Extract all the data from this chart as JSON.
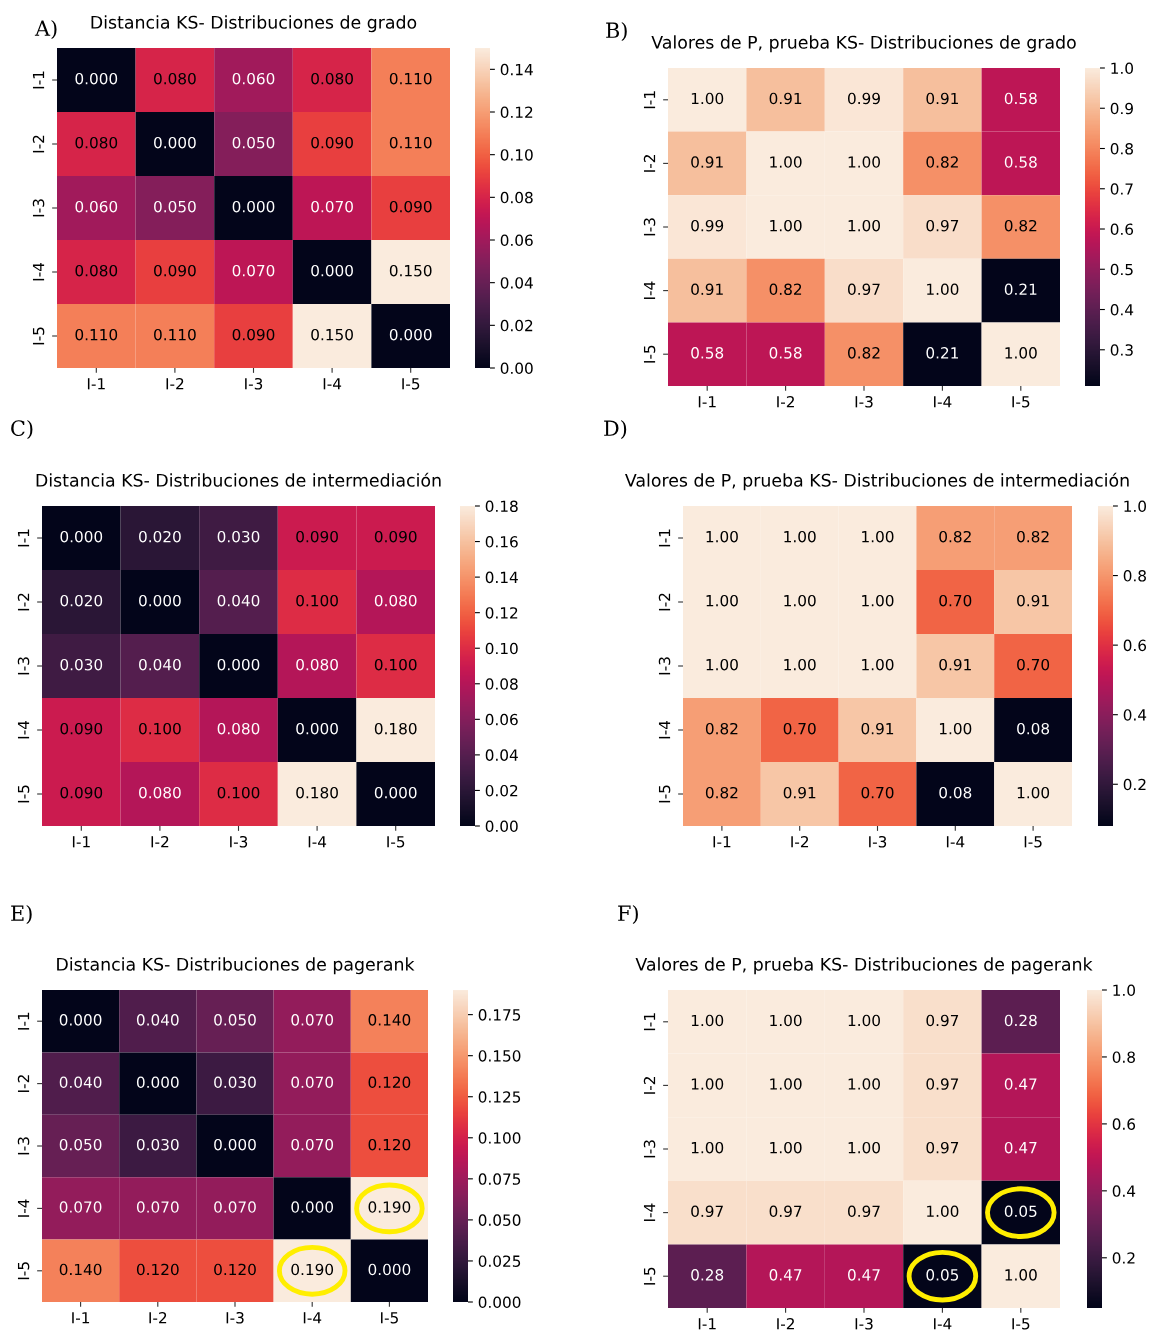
{
  "chart_data": [
    {
      "type": "heatmap",
      "title": "Distancia KS- Distribuciones de grado",
      "annotations": [
        "A)"
      ],
      "categories": [
        "I-1",
        "I-2",
        "I-3",
        "I-4",
        "I-5"
      ],
      "y_categories": [
        "I-1",
        "I-2",
        "I-3",
        "I-4",
        "I-5"
      ],
      "cells": [
        [
          0.0,
          0.08,
          0.06,
          0.08,
          0.11
        ],
        [
          0.08,
          0.0,
          0.05,
          0.09,
          0.11
        ],
        [
          0.06,
          0.05,
          0.0,
          0.07,
          0.09
        ],
        [
          0.08,
          0.09,
          0.07,
          0.0,
          0.15
        ],
        [
          0.11,
          0.11,
          0.09,
          0.15,
          0.0
        ]
      ],
      "cell_labels": [
        [
          "0.000",
          "0.080",
          "0.060",
          "0.080",
          "0.110"
        ],
        [
          "0.080",
          "0.000",
          "0.050",
          "0.090",
          "0.110"
        ],
        [
          "0.060",
          "0.050",
          "0.000",
          "0.070",
          "0.090"
        ],
        [
          "0.080",
          "0.090",
          "0.070",
          "0.000",
          "0.150"
        ],
        [
          "0.110",
          "0.110",
          "0.090",
          "0.150",
          "0.000"
        ]
      ],
      "clim": [
        0.0,
        0.15
      ],
      "cticks": [
        {
          "value": 0.0,
          "label": "0.00"
        },
        {
          "value": 0.02,
          "label": "0.02"
        },
        {
          "value": 0.04,
          "label": "0.04"
        },
        {
          "value": 0.06,
          "label": "0.06"
        },
        {
          "value": 0.08,
          "label": "0.08"
        },
        {
          "value": 0.1,
          "label": "0.10"
        },
        {
          "value": 0.12,
          "label": "0.12"
        },
        {
          "value": 0.14,
          "label": "0.14"
        }
      ]
    },
    {
      "type": "heatmap",
      "title": "Valores de P, prueba KS- Distribuciones de grado",
      "annotations": [
        "B)"
      ],
      "categories": [
        "I-1",
        "I-2",
        "I-3",
        "I-4",
        "I-5"
      ],
      "y_categories": [
        "I-1",
        "I-2",
        "I-3",
        "I-4",
        "I-5"
      ],
      "cells": [
        [
          1.0,
          0.91,
          0.99,
          0.91,
          0.58
        ],
        [
          0.91,
          1.0,
          1.0,
          0.82,
          0.58
        ],
        [
          0.99,
          1.0,
          1.0,
          0.97,
          0.82
        ],
        [
          0.91,
          0.82,
          0.97,
          1.0,
          0.21
        ],
        [
          0.58,
          0.58,
          0.82,
          0.21,
          1.0
        ]
      ],
      "cell_labels": [
        [
          "1.00",
          "0.91",
          "0.99",
          "0.91",
          "0.58"
        ],
        [
          "0.91",
          "1.00",
          "1.00",
          "0.82",
          "0.58"
        ],
        [
          "0.99",
          "1.00",
          "1.00",
          "0.97",
          "0.82"
        ],
        [
          "0.91",
          "0.82",
          "0.97",
          "1.00",
          "0.21"
        ],
        [
          "0.58",
          "0.58",
          "0.82",
          "0.21",
          "1.00"
        ]
      ],
      "clim": [
        0.21,
        1.0
      ],
      "cticks": [
        0.3,
        0.4,
        0.5,
        0.6,
        0.7,
        0.8,
        0.9,
        {
          "value": 1.0,
          "label": "1.0"
        }
      ]
    },
    {
      "type": "heatmap",
      "title": "Distancia KS- Distribuciones de intermediación",
      "annotations": [
        "C)"
      ],
      "categories": [
        "I-1",
        "I-2",
        "I-3",
        "I-4",
        "I-5"
      ],
      "y_categories": [
        "I-1",
        "I-2",
        "I-3",
        "I-4",
        "I-5"
      ],
      "cells": [
        [
          0.0,
          0.02,
          0.03,
          0.09,
          0.09
        ],
        [
          0.02,
          0.0,
          0.04,
          0.1,
          0.08
        ],
        [
          0.03,
          0.04,
          0.0,
          0.08,
          0.1
        ],
        [
          0.09,
          0.1,
          0.08,
          0.0,
          0.18
        ],
        [
          0.09,
          0.08,
          0.1,
          0.18,
          0.0
        ]
      ],
      "cell_labels": [
        [
          "0.000",
          "0.020",
          "0.030",
          "0.090",
          "0.090"
        ],
        [
          "0.020",
          "0.000",
          "0.040",
          "0.100",
          "0.080"
        ],
        [
          "0.030",
          "0.040",
          "0.000",
          "0.080",
          "0.100"
        ],
        [
          "0.090",
          "0.100",
          "0.080",
          "0.000",
          "0.180"
        ],
        [
          "0.090",
          "0.080",
          "0.100",
          "0.180",
          "0.000"
        ]
      ],
      "clim": [
        0.0,
        0.18
      ],
      "cticks": [
        {
          "value": 0.0,
          "label": "0.00"
        },
        {
          "value": 0.02,
          "label": "0.02"
        },
        {
          "value": 0.04,
          "label": "0.04"
        },
        {
          "value": 0.06,
          "label": "0.06"
        },
        {
          "value": 0.08,
          "label": "0.08"
        },
        {
          "value": 0.1,
          "label": "0.10"
        },
        {
          "value": 0.12,
          "label": "0.12"
        },
        {
          "value": 0.14,
          "label": "0.14"
        },
        {
          "value": 0.16,
          "label": "0.16"
        },
        {
          "value": 0.18,
          "label": "0.18"
        }
      ]
    },
    {
      "type": "heatmap",
      "title": "Valores de P, prueba KS- Distribuciones de intermediación",
      "annotations": [
        "D)"
      ],
      "categories": [
        "I-1",
        "I-2",
        "I-3",
        "I-4",
        "I-5"
      ],
      "y_categories": [
        "I-1",
        "I-2",
        "I-3",
        "I-4",
        "I-5"
      ],
      "cells": [
        [
          1.0,
          1.0,
          1.0,
          0.82,
          0.82
        ],
        [
          1.0,
          1.0,
          1.0,
          0.7,
          0.91
        ],
        [
          1.0,
          1.0,
          1.0,
          0.91,
          0.7
        ],
        [
          0.82,
          0.7,
          0.91,
          1.0,
          0.08
        ],
        [
          0.82,
          0.91,
          0.7,
          0.08,
          1.0
        ]
      ],
      "cell_labels": [
        [
          "1.00",
          "1.00",
          "1.00",
          "0.82",
          "0.82"
        ],
        [
          "1.00",
          "1.00",
          "1.00",
          "0.70",
          "0.91"
        ],
        [
          "1.00",
          "1.00",
          "1.00",
          "0.91",
          "0.70"
        ],
        [
          "0.82",
          "0.70",
          "0.91",
          "1.00",
          "0.08"
        ],
        [
          "0.82",
          "0.91",
          "0.70",
          "0.08",
          "1.00"
        ]
      ],
      "clim": [
        0.08,
        1.0
      ],
      "cticks": [
        0.2,
        0.4,
        0.6,
        0.8,
        {
          "value": 1.0,
          "label": "1.0"
        }
      ]
    },
    {
      "type": "heatmap",
      "title": "Distancia KS- Distribuciones de pagerank",
      "annotations": [
        "E)"
      ],
      "categories": [
        "I-1",
        "I-2",
        "I-3",
        "I-4",
        "I-5"
      ],
      "y_categories": [
        "I-1",
        "I-2",
        "I-3",
        "I-4",
        "I-5"
      ],
      "cells": [
        [
          0.0,
          0.04,
          0.05,
          0.07,
          0.14
        ],
        [
          0.04,
          0.0,
          0.03,
          0.07,
          0.12
        ],
        [
          0.05,
          0.03,
          0.0,
          0.07,
          0.12
        ],
        [
          0.07,
          0.07,
          0.07,
          0.0,
          0.19
        ],
        [
          0.14,
          0.12,
          0.12,
          0.19,
          0.0
        ]
      ],
      "cell_labels": [
        [
          "0.000",
          "0.040",
          "0.050",
          "0.070",
          "0.140"
        ],
        [
          "0.040",
          "0.000",
          "0.030",
          "0.070",
          "0.120"
        ],
        [
          "0.050",
          "0.030",
          "0.000",
          "0.070",
          "0.120"
        ],
        [
          "0.070",
          "0.070",
          "0.070",
          "0.000",
          "0.190"
        ],
        [
          "0.140",
          "0.120",
          "0.120",
          "0.190",
          "0.000"
        ]
      ],
      "clim": [
        0.0,
        0.19
      ],
      "cticks": [
        {
          "value": 0.0,
          "label": "0.000"
        },
        0.025,
        {
          "value": 0.05,
          "label": "0.050"
        },
        0.075,
        {
          "value": 0.1,
          "label": "0.100"
        },
        0.125,
        {
          "value": 0.15,
          "label": "0.150"
        },
        0.175
      ]
    },
    {
      "type": "heatmap",
      "title": "Valores de P, prueba KS- Distribuciones de pagerank",
      "annotations": [
        "F)"
      ],
      "categories": [
        "I-1",
        "I-2",
        "I-3",
        "I-4",
        "I-5"
      ],
      "y_categories": [
        "I-1",
        "I-2",
        "I-3",
        "I-4",
        "I-5"
      ],
      "cells": [
        [
          1.0,
          1.0,
          1.0,
          0.97,
          0.28
        ],
        [
          1.0,
          1.0,
          1.0,
          0.97,
          0.47
        ],
        [
          1.0,
          1.0,
          1.0,
          0.97,
          0.47
        ],
        [
          0.97,
          0.97,
          0.97,
          1.0,
          0.05
        ],
        [
          0.28,
          0.47,
          0.47,
          0.05,
          1.0
        ]
      ],
      "cell_labels": [
        [
          "1.00",
          "1.00",
          "1.00",
          "0.97",
          "0.28"
        ],
        [
          "1.00",
          "1.00",
          "1.00",
          "0.97",
          "0.47"
        ],
        [
          "1.00",
          "1.00",
          "1.00",
          "0.97",
          "0.47"
        ],
        [
          "0.97",
          "0.97",
          "0.97",
          "1.00",
          "0.05"
        ],
        [
          "0.28",
          "0.47",
          "0.47",
          "0.05",
          "1.00"
        ]
      ],
      "clim": [
        0.05,
        1.0
      ],
      "cticks": [
        0.2,
        0.4,
        0.6,
        0.8,
        {
          "value": 1.0,
          "label": "1.0"
        }
      ]
    }
  ]
}
